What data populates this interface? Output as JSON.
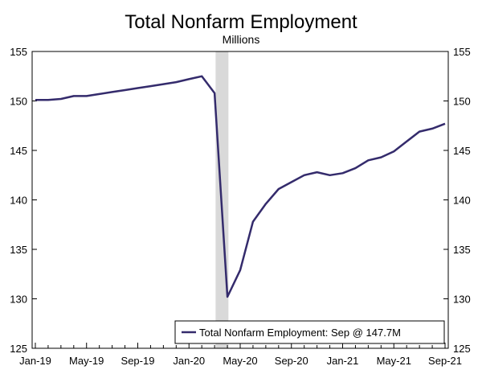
{
  "chart_data": {
    "type": "line",
    "title": "Total Nonfarm Employment",
    "subtitle": "Millions",
    "ylim": [
      125,
      155
    ],
    "yticks": [
      125,
      130,
      135,
      140,
      145,
      150,
      155
    ],
    "xtick_labels": [
      "Jan-19",
      "May-19",
      "Sep-19",
      "Jan-20",
      "May-20",
      "Sep-20",
      "Jan-21",
      "May-21",
      "Sep-21"
    ],
    "recession_shading": {
      "start": "Mar-20",
      "end": "Apr-20"
    },
    "line_color": "#342b6c",
    "shade_color": "#d9d9d9",
    "legend_label": "Total Nonfarm Employment: Sep @ 147.7M",
    "legend_position": "bottom-right",
    "series": [
      {
        "name": "Total Nonfarm Employment",
        "x": [
          "Jan-19",
          "Feb-19",
          "Mar-19",
          "Apr-19",
          "May-19",
          "Jun-19",
          "Jul-19",
          "Aug-19",
          "Sep-19",
          "Oct-19",
          "Nov-19",
          "Dec-19",
          "Jan-20",
          "Feb-20",
          "Mar-20",
          "Apr-20",
          "May-20",
          "Jun-20",
          "Jul-20",
          "Aug-20",
          "Sep-20",
          "Oct-20",
          "Nov-20",
          "Dec-20",
          "Jan-21",
          "Feb-21",
          "Mar-21",
          "Apr-21",
          "May-21",
          "Jun-21",
          "Jul-21",
          "Aug-21",
          "Sep-21"
        ],
        "values": [
          150.1,
          150.1,
          150.2,
          150.5,
          150.5,
          150.7,
          150.9,
          151.1,
          151.3,
          151.5,
          151.7,
          151.9,
          152.2,
          152.5,
          150.8,
          130.2,
          132.9,
          137.8,
          139.6,
          141.1,
          141.8,
          142.5,
          142.8,
          142.5,
          142.7,
          143.2,
          144.0,
          144.3,
          144.9,
          145.9,
          146.9,
          147.2,
          147.7
        ]
      }
    ]
  }
}
